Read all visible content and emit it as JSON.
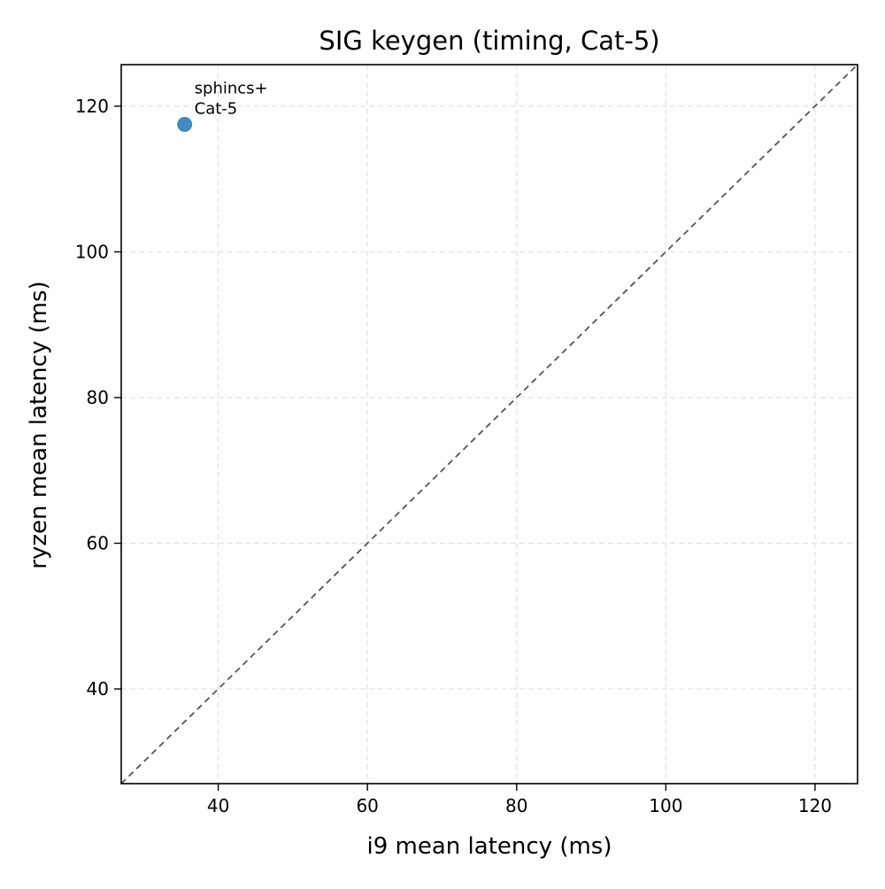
{
  "chart_data": {
    "type": "scatter",
    "title": "SIG keygen (timing, Cat-5)",
    "xlabel": "i9 mean latency (ms)",
    "ylabel": "ryzen mean latency (ms)",
    "xlim": [
      27,
      125.7
    ],
    "ylim": [
      27,
      125.7
    ],
    "xticks": [
      40,
      60,
      80,
      100,
      120
    ],
    "yticks": [
      40,
      60,
      80,
      100,
      120
    ],
    "grid": true,
    "reference_line": "y = x",
    "points": [
      {
        "x": 35.5,
        "y": 117.5,
        "label": [
          "sphincs+",
          "Cat-5"
        ]
      }
    ],
    "colors": {
      "point": "#3a84bb",
      "reference_line": "#555555",
      "grid": "#e2e2e2"
    }
  }
}
